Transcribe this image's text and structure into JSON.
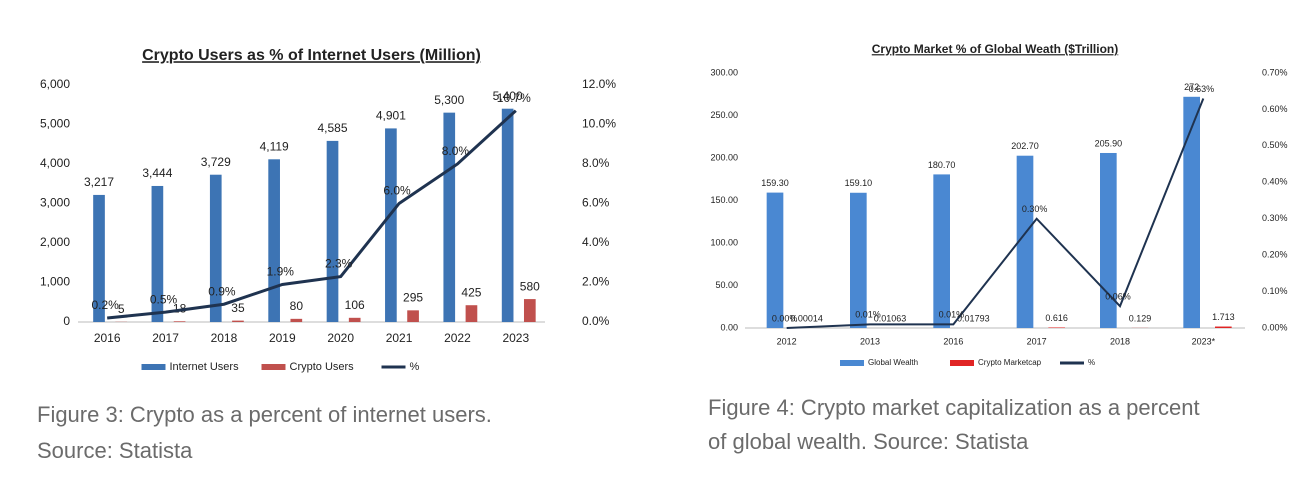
{
  "chart_data": [
    {
      "type": "bar",
      "title": "Crypto Users as % of Internet Users (Million)",
      "categories": [
        "2016",
        "2017",
        "2018",
        "2019",
        "2020",
        "2021",
        "2022",
        "2023"
      ],
      "series": [
        {
          "name": "Internet Users",
          "color": "#3d74b4",
          "values": [
            3217,
            3444,
            3729,
            4119,
            4585,
            4901,
            5300,
            5400
          ],
          "value_labels": [
            "3,217",
            "3,444",
            "3,729",
            "4,119",
            "4,585",
            "4,901",
            "5,300",
            "5,400"
          ]
        },
        {
          "name": "Crypto Users",
          "color": "#c0504d",
          "values": [
            5,
            18,
            35,
            80,
            106,
            295,
            425,
            580
          ]
        },
        {
          "name": "%",
          "color": "#1f3350",
          "axis": "y2",
          "values": [
            0.2,
            0.5,
            0.9,
            1.9,
            2.3,
            6.0,
            8.0,
            10.7
          ],
          "value_labels": [
            "0.2%",
            "0.5%",
            "0.9%",
            "1.9%",
            "2.3%",
            "6.0%",
            "8.0%",
            "10.7%"
          ]
        }
      ],
      "ylim": [
        0,
        6000
      ],
      "yticks": [
        0,
        {
          "value": 1000,
          "label": "1,000"
        },
        {
          "value": 2000,
          "label": "2,000"
        },
        {
          "value": 3000,
          "label": "3,000"
        },
        {
          "value": 4000,
          "label": "4,000"
        },
        {
          "value": 5000,
          "label": "5,000"
        },
        {
          "value": 6000,
          "label": "6,000"
        }
      ],
      "y2lim": [
        0,
        12
      ],
      "y2ticks": [
        {
          "value": 0,
          "label": "0.0%"
        },
        {
          "value": 2,
          "label": "2.0%"
        },
        {
          "value": 4,
          "label": "4.0%"
        },
        {
          "value": 6,
          "label": "6.0%"
        },
        {
          "value": 8,
          "label": "8.0%"
        },
        {
          "value": 10,
          "label": "10.0%"
        },
        {
          "value": 12,
          "label": "12.0%"
        }
      ],
      "legend": "bottom"
    },
    {
      "type": "bar",
      "title": "Crypto Market % of Global Weath ($Trillion)",
      "categories": [
        "2012",
        "2013",
        "2016",
        "2017",
        "2018",
        "2023*"
      ],
      "series": [
        {
          "name": "Global Wealth",
          "color": "#4a88d2",
          "values": [
            159.3,
            159.1,
            180.7,
            202.7,
            205.9,
            272
          ],
          "value_labels": [
            "159.30",
            "159.10",
            "180.70",
            "202.70",
            "205.90",
            "272"
          ]
        },
        {
          "name": "Crypto Marketcap",
          "color": "#e02424",
          "values": [
            0.00014,
            0.01063,
            0.01793,
            0.616,
            0.129,
            1.713
          ]
        },
        {
          "name": "%",
          "color": "#1f3350",
          "axis": "y2",
          "values": [
            0.0,
            0.01,
            0.01,
            0.3,
            0.06,
            0.63
          ],
          "value_labels": [
            "0.00%",
            "0.01%",
            "0.01%",
            "0.30%",
            "0.06%",
            "0.63%"
          ]
        }
      ],
      "ylim": [
        0,
        300
      ],
      "yticks": [
        {
          "value": 0,
          "label": "0.00"
        },
        {
          "value": 50,
          "label": "50.00"
        },
        {
          "value": 100,
          "label": "100.00"
        },
        {
          "value": 150,
          "label": "150.00"
        },
        {
          "value": 200,
          "label": "200.00"
        },
        {
          "value": 250,
          "label": "250.00"
        },
        {
          "value": 300,
          "label": "300.00"
        }
      ],
      "y2lim": [
        0,
        0.7
      ],
      "y2ticks": [
        {
          "value": 0,
          "label": "0.00%"
        },
        {
          "value": 0.1,
          "label": "0.10%"
        },
        {
          "value": 0.2,
          "label": "0.20%"
        },
        {
          "value": 0.3,
          "label": "0.30%"
        },
        {
          "value": 0.4,
          "label": "0.40%"
        },
        {
          "value": 0.5,
          "label": "0.50%"
        },
        {
          "value": 0.6,
          "label": "0.60%"
        },
        {
          "value": 0.7,
          "label": "0.70%"
        }
      ],
      "legend": "bottom"
    }
  ],
  "captions": [
    [
      "Figure 3: Crypto as a percent of internet users.",
      "Source: Statista"
    ],
    [
      "Figure 4: Crypto market capitalization as a percent",
      "of global wealth. Source: Statista"
    ]
  ]
}
